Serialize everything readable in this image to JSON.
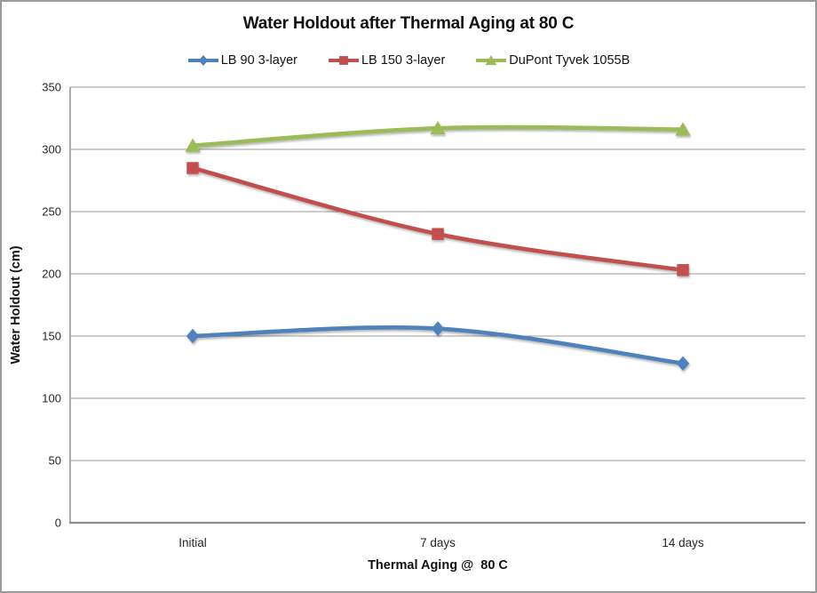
{
  "chart_data": {
    "type": "line",
    "title": "Water Holdout after Thermal Aging at 80 C",
    "xlabel": "Thermal Aging @  80 C",
    "ylabel": "Water Holdout (cm)",
    "categories": [
      "Initial",
      "7 days",
      "14 days"
    ],
    "series": [
      {
        "name": "LB 90 3-layer",
        "marker": "diamond",
        "color": "#4F81BD",
        "values": [
          150,
          156,
          128
        ]
      },
      {
        "name": "LB 150 3-layer",
        "marker": "square",
        "color": "#C0504D",
        "values": [
          285,
          232,
          203
        ]
      },
      {
        "name": "DuPont Tyvek 1055B",
        "marker": "triangle",
        "color": "#9BBB59",
        "values": [
          303,
          317,
          316
        ]
      }
    ],
    "ylim": [
      0,
      350
    ],
    "yticks": [
      0,
      50,
      100,
      150,
      200,
      250,
      300,
      350
    ],
    "grid": true,
    "legend_position": "top",
    "smoothed": true,
    "gridline_color": "#9a9a9a",
    "axis_color": "#8c8c8c"
  }
}
